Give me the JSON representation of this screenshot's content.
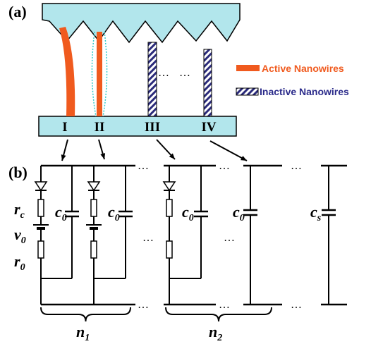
{
  "panel_a": {
    "label": "(a)",
    "wires": [
      "I",
      "II",
      "III",
      "IV"
    ],
    "legend": {
      "active": "Active Nanowires",
      "inactive": "Inactive Nanowires"
    }
  },
  "panel_b": {
    "label": "(b)",
    "ellipsis": "…",
    "rc": {
      "main": "r",
      "sub": "c"
    },
    "v0": {
      "main": "v",
      "sub": "0"
    },
    "r0": {
      "main": "r",
      "sub": "0"
    },
    "c0": {
      "main": "c",
      "sub": "0"
    },
    "cs": {
      "main": "c",
      "sub": "s"
    },
    "n1": {
      "main": "n",
      "sub": "1"
    },
    "n2": {
      "main": "n",
      "sub": "2"
    }
  }
}
